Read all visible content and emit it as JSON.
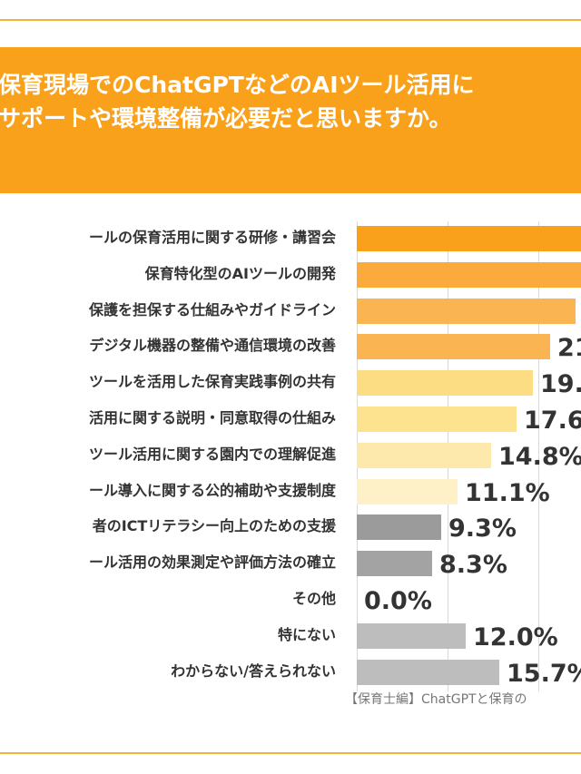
{
  "title_lines": [
    "保育現場でのChatGPTなどのAIツール活用に",
    "サポートや環境整備が必要だと思いますか。",
    "）"
  ],
  "source": "【保育士編】ChatGPTと保育の",
  "chart_data": {
    "type": "bar",
    "orientation": "horizontal",
    "categories": [
      "ールの保育活用に関する研修・講習会",
      "保育特化型のAIツールの開発",
      "保護を担保する仕組みやガイドライン",
      "デジタル機器の整備や通信環境の改善",
      "ツールを活用した保育実践事例の共有",
      "活用に関する説明・同意取得の仕組み",
      "ツール活用に関する園内での理解促進",
      "ール導入に関する公的補助や支援制度",
      "者のICTリテラシー向上のための支援",
      "ール活用の効果測定や評価方法の確立",
      "その他",
      "特にない",
      "わからない/答えられない"
    ],
    "values": [
      27.0,
      25.5,
      24.1,
      21.3,
      19.4,
      17.6,
      14.8,
      11.1,
      9.3,
      8.3,
      0.0,
      12.0,
      15.7
    ],
    "value_labels": [
      "",
      "",
      "",
      "21.",
      "19.",
      "17.6",
      "14.8%",
      "11.1%",
      "9.3%",
      "8.3%",
      "0.0%",
      "12.0%",
      "15.7%"
    ],
    "colors": [
      "#f9a11b",
      "#fbab3c",
      "#fbb452",
      "#fbb452",
      "#fddd84",
      "#fde290",
      "#fee9ad",
      "#fef1c8",
      "#9b9b9b",
      "#a3a3a3",
      "#bdbdbd",
      "#bdbdbd",
      "#bdbdbd"
    ],
    "unit": "%",
    "grid": true,
    "xgrid_ticks": [
      0,
      10,
      20
    ]
  }
}
